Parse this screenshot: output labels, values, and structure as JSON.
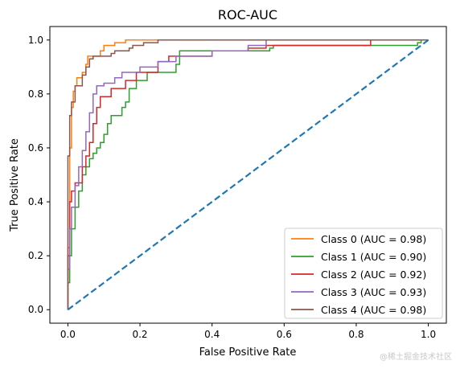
{
  "chart_data": {
    "type": "line",
    "title": "ROC-AUC",
    "xlabel": "False Positive Rate",
    "ylabel": "True Positive Rate",
    "xlim": [
      -0.05,
      1.05
    ],
    "ylim": [
      -0.05,
      1.05
    ],
    "xticks": [
      "0.0",
      "0.2",
      "0.4",
      "0.6",
      "0.8",
      "1.0"
    ],
    "yticks": [
      "0.0",
      "0.2",
      "0.4",
      "0.6",
      "0.8",
      "1.0"
    ],
    "grid": false,
    "legend_position": "lower right",
    "series": [
      {
        "name": "Class 0 (AUC = 0.98)",
        "color": "#ff7f0e",
        "points": [
          [
            0,
            0
          ],
          [
            0,
            0.23
          ],
          [
            0.005,
            0.23
          ],
          [
            0.005,
            0.6
          ],
          [
            0.01,
            0.6
          ],
          [
            0.01,
            0.75
          ],
          [
            0.015,
            0.75
          ],
          [
            0.015,
            0.81
          ],
          [
            0.02,
            0.81
          ],
          [
            0.02,
            0.83
          ],
          [
            0.025,
            0.83
          ],
          [
            0.025,
            0.86
          ],
          [
            0.04,
            0.86
          ],
          [
            0.04,
            0.88
          ],
          [
            0.05,
            0.88
          ],
          [
            0.05,
            0.91
          ],
          [
            0.055,
            0.91
          ],
          [
            0.055,
            0.94
          ],
          [
            0.09,
            0.94
          ],
          [
            0.09,
            0.96
          ],
          [
            0.1,
            0.96
          ],
          [
            0.1,
            0.98
          ],
          [
            0.13,
            0.98
          ],
          [
            0.13,
            0.99
          ],
          [
            0.16,
            0.99
          ],
          [
            0.16,
            1.0
          ],
          [
            1.0,
            1.0
          ]
        ]
      },
      {
        "name": "Class 1 (AUC = 0.90)",
        "color": "#2ca02c",
        "points": [
          [
            0,
            0
          ],
          [
            0,
            0.1
          ],
          [
            0.005,
            0.1
          ],
          [
            0.005,
            0.2
          ],
          [
            0.01,
            0.2
          ],
          [
            0.01,
            0.3
          ],
          [
            0.02,
            0.3
          ],
          [
            0.02,
            0.38
          ],
          [
            0.03,
            0.38
          ],
          [
            0.03,
            0.44
          ],
          [
            0.04,
            0.44
          ],
          [
            0.04,
            0.5
          ],
          [
            0.05,
            0.5
          ],
          [
            0.05,
            0.53
          ],
          [
            0.06,
            0.53
          ],
          [
            0.06,
            0.56
          ],
          [
            0.07,
            0.56
          ],
          [
            0.07,
            0.58
          ],
          [
            0.08,
            0.58
          ],
          [
            0.08,
            0.6
          ],
          [
            0.09,
            0.6
          ],
          [
            0.09,
            0.62
          ],
          [
            0.1,
            0.62
          ],
          [
            0.1,
            0.65
          ],
          [
            0.11,
            0.65
          ],
          [
            0.11,
            0.69
          ],
          [
            0.12,
            0.69
          ],
          [
            0.12,
            0.72
          ],
          [
            0.15,
            0.72
          ],
          [
            0.15,
            0.75
          ],
          [
            0.16,
            0.75
          ],
          [
            0.16,
            0.77
          ],
          [
            0.17,
            0.77
          ],
          [
            0.17,
            0.82
          ],
          [
            0.19,
            0.82
          ],
          [
            0.19,
            0.85
          ],
          [
            0.22,
            0.85
          ],
          [
            0.22,
            0.88
          ],
          [
            0.3,
            0.88
          ],
          [
            0.3,
            0.91
          ],
          [
            0.31,
            0.91
          ],
          [
            0.31,
            0.96
          ],
          [
            0.56,
            0.96
          ],
          [
            0.56,
            0.97
          ],
          [
            0.57,
            0.97
          ],
          [
            0.57,
            0.98
          ],
          [
            0.97,
            0.98
          ],
          [
            0.97,
            0.99
          ],
          [
            0.98,
            0.99
          ],
          [
            0.98,
            1.0
          ],
          [
            1.0,
            1.0
          ]
        ]
      },
      {
        "name": "Class 2 (AUC = 0.92)",
        "color": "#d62728",
        "points": [
          [
            0,
            0
          ],
          [
            0,
            0.2
          ],
          [
            0.005,
            0.2
          ],
          [
            0.005,
            0.4
          ],
          [
            0.01,
            0.4
          ],
          [
            0.01,
            0.44
          ],
          [
            0.02,
            0.44
          ],
          [
            0.02,
            0.47
          ],
          [
            0.04,
            0.47
          ],
          [
            0.04,
            0.53
          ],
          [
            0.05,
            0.53
          ],
          [
            0.05,
            0.57
          ],
          [
            0.06,
            0.57
          ],
          [
            0.06,
            0.62
          ],
          [
            0.07,
            0.62
          ],
          [
            0.07,
            0.69
          ],
          [
            0.08,
            0.69
          ],
          [
            0.08,
            0.75
          ],
          [
            0.09,
            0.75
          ],
          [
            0.09,
            0.79
          ],
          [
            0.12,
            0.79
          ],
          [
            0.12,
            0.82
          ],
          [
            0.16,
            0.82
          ],
          [
            0.16,
            0.85
          ],
          [
            0.19,
            0.85
          ],
          [
            0.19,
            0.88
          ],
          [
            0.25,
            0.88
          ],
          [
            0.25,
            0.92
          ],
          [
            0.28,
            0.92
          ],
          [
            0.28,
            0.94
          ],
          [
            0.4,
            0.94
          ],
          [
            0.4,
            0.96
          ],
          [
            0.5,
            0.96
          ],
          [
            0.5,
            0.97
          ],
          [
            0.55,
            0.97
          ],
          [
            0.55,
            0.98
          ],
          [
            0.84,
            0.98
          ],
          [
            0.84,
            1.0
          ],
          [
            1.0,
            1.0
          ]
        ]
      },
      {
        "name": "Class 3 (AUC = 0.93)",
        "color": "#9467bd",
        "points": [
          [
            0,
            0
          ],
          [
            0,
            0.15
          ],
          [
            0.005,
            0.15
          ],
          [
            0.005,
            0.3
          ],
          [
            0.01,
            0.3
          ],
          [
            0.01,
            0.38
          ],
          [
            0.02,
            0.38
          ],
          [
            0.02,
            0.46
          ],
          [
            0.03,
            0.46
          ],
          [
            0.03,
            0.53
          ],
          [
            0.04,
            0.53
          ],
          [
            0.04,
            0.59
          ],
          [
            0.05,
            0.59
          ],
          [
            0.05,
            0.66
          ],
          [
            0.06,
            0.66
          ],
          [
            0.06,
            0.73
          ],
          [
            0.07,
            0.73
          ],
          [
            0.07,
            0.8
          ],
          [
            0.08,
            0.8
          ],
          [
            0.08,
            0.83
          ],
          [
            0.1,
            0.83
          ],
          [
            0.1,
            0.84
          ],
          [
            0.13,
            0.84
          ],
          [
            0.13,
            0.86
          ],
          [
            0.15,
            0.86
          ],
          [
            0.15,
            0.88
          ],
          [
            0.2,
            0.88
          ],
          [
            0.2,
            0.9
          ],
          [
            0.25,
            0.9
          ],
          [
            0.25,
            0.92
          ],
          [
            0.3,
            0.92
          ],
          [
            0.3,
            0.94
          ],
          [
            0.4,
            0.94
          ],
          [
            0.4,
            0.96
          ],
          [
            0.5,
            0.96
          ],
          [
            0.5,
            0.98
          ],
          [
            0.55,
            0.98
          ],
          [
            0.55,
            1.0
          ],
          [
            1.0,
            1.0
          ]
        ]
      },
      {
        "name": "Class 4 (AUC = 0.98)",
        "color": "#8c564b",
        "points": [
          [
            0,
            0
          ],
          [
            0,
            0.57
          ],
          [
            0.005,
            0.57
          ],
          [
            0.005,
            0.72
          ],
          [
            0.01,
            0.72
          ],
          [
            0.01,
            0.77
          ],
          [
            0.02,
            0.77
          ],
          [
            0.02,
            0.83
          ],
          [
            0.04,
            0.83
          ],
          [
            0.04,
            0.87
          ],
          [
            0.05,
            0.87
          ],
          [
            0.05,
            0.9
          ],
          [
            0.06,
            0.9
          ],
          [
            0.06,
            0.93
          ],
          [
            0.07,
            0.93
          ],
          [
            0.07,
            0.94
          ],
          [
            0.12,
            0.94
          ],
          [
            0.12,
            0.95
          ],
          [
            0.13,
            0.95
          ],
          [
            0.13,
            0.96
          ],
          [
            0.17,
            0.96
          ],
          [
            0.17,
            0.97
          ],
          [
            0.18,
            0.97
          ],
          [
            0.18,
            0.98
          ],
          [
            0.21,
            0.98
          ],
          [
            0.21,
            0.99
          ],
          [
            0.25,
            0.99
          ],
          [
            0.25,
            1.0
          ],
          [
            1.0,
            1.0
          ]
        ]
      }
    ],
    "reference_line": {
      "color": "#1f77b4",
      "style": "dashed",
      "points": [
        [
          0,
          0
        ],
        [
          1,
          1
        ]
      ]
    }
  },
  "watermark": "@稀土掘金技术社区"
}
